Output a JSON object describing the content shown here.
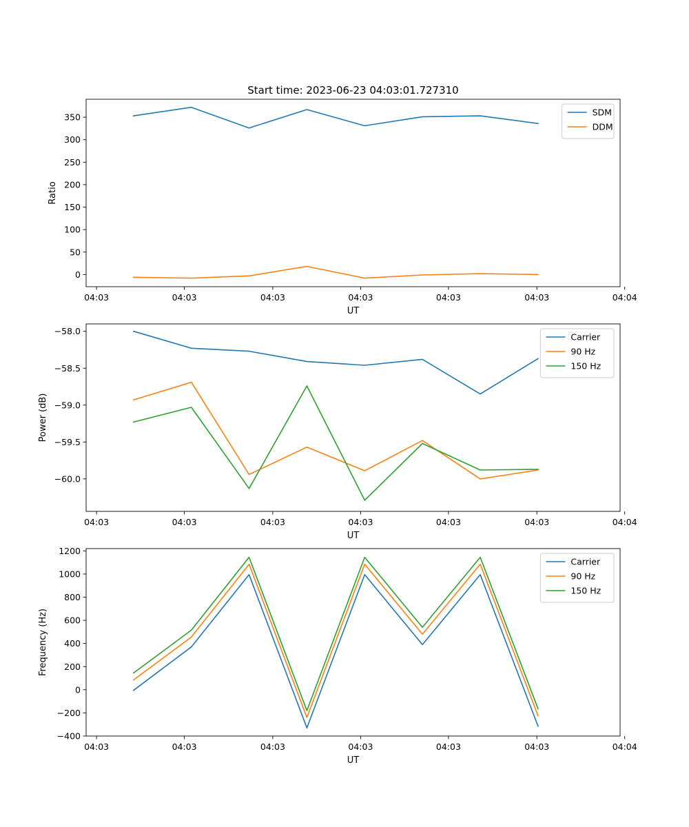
{
  "figure": {
    "title": "Start time: 2023-06-23 04:03:01.727310"
  },
  "chart_data": [
    {
      "type": "line",
      "title": "Start time: 2023-06-23 04:03:01.727310",
      "xlabel": "UT",
      "ylabel": "Ratio",
      "x": [
        1,
        2,
        3,
        4,
        5,
        6,
        7,
        8
      ],
      "xlim": [
        0.18,
        9.42
      ],
      "xticks": [
        0.36,
        1.88,
        3.41,
        4.93,
        6.45,
        7.98,
        9.5
      ],
      "xtick_labels": [
        "04:03",
        "04:03",
        "04:03",
        "04:03",
        "04:03",
        "04:03",
        "04:04"
      ],
      "ylim": [
        -27,
        390
      ],
      "yticks": [
        0,
        50,
        100,
        150,
        200,
        250,
        300,
        350
      ],
      "ytick_labels": [
        "0",
        "50",
        "100",
        "150",
        "200",
        "250",
        "300",
        "350"
      ],
      "legend": "top-right",
      "grid": false,
      "series": [
        {
          "name": "SDM",
          "color": "#1f77b4",
          "values": [
            353,
            372,
            326,
            367,
            331,
            351,
            353,
            336
          ]
        },
        {
          "name": "DDM",
          "color": "#ff7f0e",
          "values": [
            -6,
            -8,
            -3,
            18,
            -8,
            -1,
            2,
            0
          ]
        }
      ]
    },
    {
      "type": "line",
      "xlabel": "UT",
      "ylabel": "Power (dB)",
      "x": [
        1,
        2,
        3,
        4,
        5,
        6,
        7,
        8
      ],
      "xlim": [
        0.18,
        9.42
      ],
      "xticks": [
        0.36,
        1.88,
        3.41,
        4.93,
        6.45,
        7.98,
        9.5
      ],
      "xtick_labels": [
        "04:03",
        "04:03",
        "04:03",
        "04:03",
        "04:03",
        "04:03",
        "04:04"
      ],
      "ylim": [
        -60.44,
        -57.9
      ],
      "yticks": [
        -60.0,
        -59.5,
        -59.0,
        -58.5,
        -58.0
      ],
      "ytick_labels": [
        "−60.0",
        "−59.5",
        "−59.0",
        "−58.5",
        "−58.0"
      ],
      "legend": "top-right",
      "grid": false,
      "series": [
        {
          "name": "Carrier",
          "color": "#1f77b4",
          "values": [
            -58.0,
            -58.23,
            -58.27,
            -58.41,
            -58.46,
            -58.38,
            -58.85,
            -58.37
          ]
        },
        {
          "name": "90 Hz",
          "color": "#ff7f0e",
          "values": [
            -58.93,
            -58.69,
            -59.94,
            -59.57,
            -59.89,
            -59.48,
            -60.0,
            -59.88
          ]
        },
        {
          "name": "150 Hz",
          "color": "#2ca02c",
          "values": [
            -59.23,
            -59.03,
            -60.13,
            -58.74,
            -60.29,
            -59.52,
            -59.88,
            -59.87
          ]
        }
      ]
    },
    {
      "type": "line",
      "xlabel": "UT",
      "ylabel": "Frequency (Hz)",
      "x": [
        1,
        2,
        3,
        4,
        5,
        6,
        7,
        8
      ],
      "xlim": [
        0.18,
        9.42
      ],
      "xticks": [
        0.36,
        1.88,
        3.41,
        4.93,
        6.45,
        7.98,
        9.5
      ],
      "xtick_labels": [
        "04:03",
        "04:03",
        "04:03",
        "04:03",
        "04:03",
        "04:03",
        "04:04"
      ],
      "ylim": [
        -400,
        1220
      ],
      "yticks": [
        -400,
        -200,
        0,
        200,
        400,
        600,
        800,
        1000,
        1200
      ],
      "ytick_labels": [
        "−400",
        "−200",
        "0",
        "200",
        "400",
        "600",
        "800",
        "1000",
        "1200"
      ],
      "legend": "top-right",
      "grid": false,
      "series": [
        {
          "name": "Carrier",
          "color": "#1f77b4",
          "values": [
            -5,
            370,
            995,
            -330,
            995,
            390,
            995,
            -315
          ]
        },
        {
          "name": "90 Hz",
          "color": "#ff7f0e",
          "values": [
            85,
            455,
            1085,
            -240,
            1085,
            480,
            1085,
            -225
          ]
        },
        {
          "name": "150 Hz",
          "color": "#2ca02c",
          "values": [
            145,
            515,
            1145,
            -180,
            1145,
            540,
            1145,
            -165
          ]
        }
      ]
    }
  ]
}
